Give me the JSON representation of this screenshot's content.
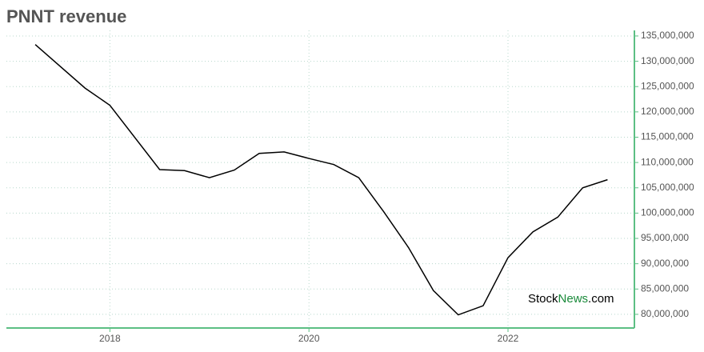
{
  "chart_data": {
    "type": "line",
    "title": "PNNT revenue",
    "watermark": [
      "Stock",
      "News",
      ".com"
    ],
    "x": [
      2017.25,
      2017.75,
      2018.0,
      2018.5,
      2018.75,
      2019.0,
      2019.25,
      2019.5,
      2019.75,
      2020.0,
      2020.25,
      2020.5,
      2020.75,
      2021.0,
      2021.25,
      2021.5,
      2021.75,
      2022.0,
      2022.25,
      2022.5,
      2022.75,
      2023.0
    ],
    "series": [
      {
        "name": "PNNT revenue",
        "color": "#000000",
        "values": [
          133300000,
          124700000,
          121300000,
          108600000,
          108400000,
          107000000,
          108500000,
          111800000,
          112100000,
          110800000,
          109600000,
          107000000,
          100300000,
          93200000,
          84700000,
          79900000,
          81700000,
          91200000,
          96300000,
          99200000,
          105000000,
          106600000
        ]
      }
    ],
    "xlim": [
      2016.96,
      2023.27
    ],
    "xticks": [
      2018,
      2020,
      2022
    ],
    "ylim": [
      77300000,
      136100000
    ],
    "yticks": [
      {
        "value": 80000000,
        "label": "80,000,000"
      },
      {
        "value": 85000000,
        "label": "85,000,000"
      },
      {
        "value": 90000000,
        "label": "90,000,000"
      },
      {
        "value": 95000000,
        "label": "95,000,000"
      },
      {
        "value": 100000000,
        "label": "100,000,000"
      },
      {
        "value": 105000000,
        "label": "105,000,000"
      },
      {
        "value": 110000000,
        "label": "110,000,000"
      },
      {
        "value": 115000000,
        "label": "115,000,000"
      },
      {
        "value": 120000000,
        "label": "120,000,000"
      },
      {
        "value": 125000000,
        "label": "125,000,000"
      },
      {
        "value": 130000000,
        "label": "130,000,000"
      },
      {
        "value": 135000000,
        "label": "135,000,000"
      }
    ],
    "grid": true,
    "axis_color": "#5cbf84"
  }
}
